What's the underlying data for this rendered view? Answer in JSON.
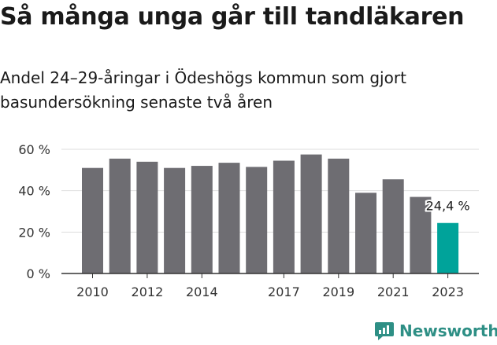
{
  "title": "Så många unga går till tandläkaren",
  "subtitle": "Andel 24–29-åringar i Ödeshögs kommun som gjort basundersökning senaste två åren",
  "brand": {
    "name": "Newsworthy",
    "icon": "newsworthy-logo-icon",
    "color": "#2e8f85"
  },
  "chart_data": {
    "type": "bar",
    "categories": [
      "2010",
      "2011",
      "2012",
      "2013",
      "2014",
      "2015",
      "2016",
      "2017",
      "2018",
      "2019",
      "2020",
      "2021",
      "2022",
      "2023"
    ],
    "values": [
      51,
      55.5,
      54,
      51,
      52,
      53.5,
      51.5,
      54.5,
      57.5,
      55.5,
      39,
      45.5,
      37,
      24.4
    ],
    "x_tick_labels": [
      "2010",
      "",
      "2012",
      "",
      "2014",
      "",
      "",
      "2017",
      "",
      "2019",
      "",
      "2021",
      "",
      "2023"
    ],
    "y_ticks": [
      "0 %",
      "20 %",
      "40 %",
      "60 %"
    ],
    "y_tick_values": [
      0,
      20,
      40,
      60
    ],
    "ylim": [
      0,
      60
    ],
    "grid": true,
    "colors": {
      "bar": "#6e6d72",
      "highlight": "#00a39a",
      "grid": "#dedede",
      "axis": "#333333"
    },
    "highlight_index": 13,
    "annotation": {
      "index": 13,
      "text": "24,4 %"
    }
  }
}
